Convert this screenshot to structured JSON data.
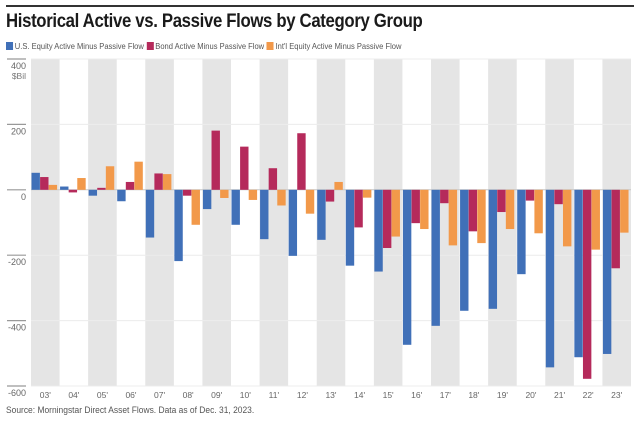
{
  "chart_data": {
    "type": "bar",
    "title": "Historical Active vs. Passive Flows by Category Group",
    "xlabel": "",
    "ylabel": "$Bil",
    "ylim": [
      -600,
      400
    ],
    "yticks": [
      400,
      200,
      0,
      -200,
      -400,
      -600
    ],
    "ytick_labels": [
      "400",
      "200",
      "0",
      "-200",
      "-400",
      "-600"
    ],
    "grid": true,
    "legend_position": "top-left",
    "categories": [
      "03'",
      "04'",
      "05'",
      "06'",
      "07'",
      "08'",
      "09'",
      "10'",
      "11'",
      "12'",
      "13'",
      "14'",
      "15'",
      "16'",
      "17'",
      "18'",
      "19'",
      "20'",
      "21'",
      "22'",
      "23'"
    ],
    "series": [
      {
        "name": "U.S. Equity Active Minus Passive Flow",
        "color": "#4070b8",
        "values": [
          52,
          10,
          -18,
          -35,
          -146,
          -218,
          -59,
          -107,
          -151,
          -202,
          -153,
          -232,
          -250,
          -474,
          -416,
          -370,
          -364,
          -258,
          -543,
          -512,
          -502
        ]
      },
      {
        "name": "Bond Active Minus Passive Flow",
        "color": "#b52a5b",
        "values": [
          39,
          -8,
          6,
          24,
          50,
          -18,
          181,
          132,
          66,
          173,
          -36,
          -115,
          -178,
          -102,
          -41,
          -127,
          -68,
          -33,
          -44,
          -578,
          -240
        ]
      },
      {
        "name": "Int'l Equity Active Minus Passive Flow",
        "color": "#f2994a",
        "values": [
          15,
          36,
          72,
          86,
          48,
          -107,
          -25,
          -31,
          -48,
          -73,
          24,
          -24,
          -143,
          -120,
          -170,
          -163,
          -120,
          -133,
          -173,
          -183,
          -131
        ]
      }
    ],
    "band_color": "#e5e5e5",
    "source": "Source: Morningstar Direct Asset Flows. Data as of Dec. 31, 2023."
  }
}
